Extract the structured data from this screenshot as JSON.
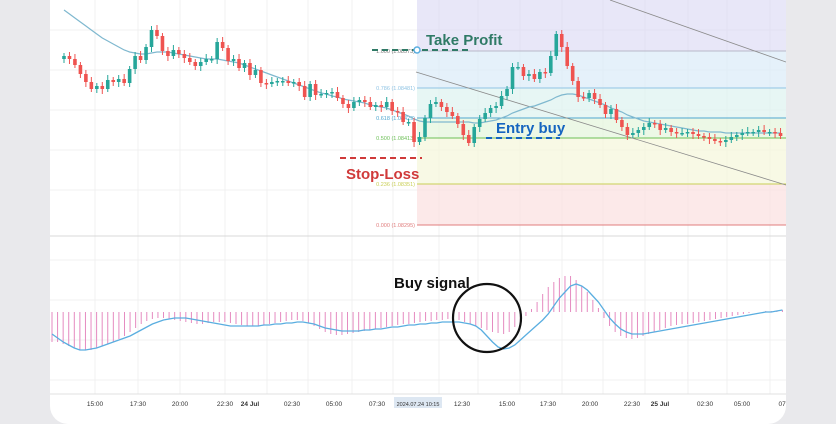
{
  "annotations": {
    "take_profit": "Take Profit",
    "entry_buy": "Entry buy",
    "stop_loss": "Stop-Loss",
    "buy_signal": "Buy signal"
  },
  "colors": {
    "bull": "#26a69a",
    "bear": "#ef5350",
    "ma": "#7fb8cf",
    "take_profit": "#2f7a66",
    "entry": "#1565c0",
    "stop_loss": "#d03a3a",
    "macd_hist": "#e58ac0",
    "macd_line": "#5aaee0"
  },
  "chart_data": [
    {
      "type": "candlestick",
      "fib_levels": [
        {
          "ratio": "1.000",
          "price": "1.08573",
          "label": "1.000 (1.08573)",
          "color": "#b9b9c9"
        },
        {
          "ratio": "0.786",
          "price": "1.08481",
          "label": "0.786 (1.08481)",
          "color": "#90c4e4"
        },
        {
          "ratio": "0.618",
          "price": "1.08429",
          "label": "0.618 (1.08429)",
          "color": "#4fa6cf"
        },
        {
          "ratio": "0.500",
          "price": "1.08413",
          "label": "0.500 (1.08413)",
          "color": "#6cbf56"
        },
        {
          "ratio": "0.236",
          "price": "1.08351",
          "label": "0.236 (1.08351)",
          "color": "#c9cf55"
        },
        {
          "ratio": "0.000",
          "price": "1.08295",
          "label": "0.000 (1.08295)",
          "color": "#e07d7d"
        }
      ],
      "x_ticks": [
        "15:00",
        "17:30",
        "20:00",
        "22:30",
        "24 Jul",
        "02:30",
        "05:00",
        "07:30",
        "2024.07.24 10:15",
        "12:30",
        "15:00",
        "17:30",
        "20:00",
        "22:30",
        "25 Jul",
        "02:30",
        "05:00",
        "07:"
      ],
      "highlighted_tick": "2024.07.24 10:15",
      "closes": [
        216,
        213,
        207,
        198,
        190,
        183,
        186,
        183,
        192,
        190,
        193,
        189,
        203,
        216,
        212,
        225,
        242,
        236,
        221,
        216,
        222,
        218,
        214,
        210,
        206,
        210,
        213,
        213,
        230,
        224,
        211,
        213,
        204,
        209,
        197,
        202,
        189,
        188,
        190,
        191,
        191,
        189,
        190,
        186,
        175,
        188,
        177,
        178,
        179,
        180,
        174,
        168,
        164,
        170,
        172,
        170,
        165,
        167,
        165,
        170,
        161,
        160,
        150,
        150,
        130,
        135,
        154,
        168,
        170,
        165,
        160,
        156,
        148,
        137,
        129,
        145,
        153,
        159,
        164,
        166,
        176,
        183,
        205,
        205,
        196,
        198,
        193,
        200,
        199,
        216,
        238,
        225,
        206,
        191,
        175,
        174,
        179,
        173,
        167,
        158,
        163,
        152,
        145,
        137,
        139,
        142,
        145,
        149,
        148,
        142,
        144,
        140,
        139,
        139,
        140,
        138,
        136,
        135,
        133,
        131,
        130,
        132,
        135,
        137,
        139,
        140,
        140,
        142,
        140,
        140,
        139,
        136
      ],
      "ma": [
        262,
        258,
        254,
        250,
        246,
        242,
        238,
        234,
        231,
        228,
        225,
        222,
        220,
        219,
        218,
        218,
        219,
        220,
        220,
        220,
        219,
        218,
        217,
        216,
        215,
        214,
        213,
        213,
        213,
        212,
        211,
        210,
        209,
        207,
        205,
        203,
        201,
        199,
        197,
        195,
        193,
        191,
        189,
        187,
        185,
        183,
        181,
        179,
        178,
        176,
        175,
        173,
        172,
        171,
        170,
        169,
        167,
        166,
        165,
        164,
        162,
        160,
        158,
        156,
        153,
        151,
        150,
        150,
        150,
        150,
        150,
        150,
        150,
        150,
        150,
        149,
        149,
        150,
        151,
        152,
        154,
        156,
        159,
        161,
        163,
        165,
        166,
        168,
        170,
        172,
        175,
        177,
        178,
        178,
        177,
        175,
        173,
        171,
        169,
        167,
        164,
        162,
        160,
        157,
        155,
        153,
        151,
        150,
        149,
        148,
        147,
        146,
        145,
        144,
        143,
        142,
        141,
        141,
        140,
        140,
        140,
        139,
        139,
        139,
        139,
        139,
        139,
        139,
        139,
        139,
        139,
        139
      ]
    },
    {
      "type": "bar",
      "name": "MACD",
      "signal_label": "Buy signal",
      "hist": [
        -30,
        -30,
        -32,
        -34,
        -36,
        -38,
        -38,
        -38,
        -36,
        -34,
        -32,
        -30,
        -27,
        -24,
        -20,
        -16,
        -12,
        -9,
        -7,
        -6,
        -6,
        -7,
        -8,
        -9,
        -10,
        -11,
        -12,
        -12,
        -11,
        -10,
        -10,
        -10,
        -11,
        -12,
        -13,
        -14,
        -14,
        -14,
        -13,
        -12,
        -11,
        -10,
        -9,
        -8,
        -8,
        -9,
        -11,
        -14,
        -17,
        -20,
        -22,
        -23,
        -23,
        -22,
        -21,
        -20,
        -19,
        -18,
        -17,
        -16,
        -15,
        -14,
        -13,
        -12,
        -12,
        -11,
        -10,
        -9,
        -9,
        -8,
        -8,
        -7,
        -7,
        -8,
        -10,
        -12,
        -14,
        -16,
        -18,
        -20,
        -21,
        -22,
        -20,
        -15,
        -10,
        -4,
        3,
        10,
        18,
        25,
        30,
        34,
        36,
        36,
        32,
        26,
        20,
        12,
        4,
        -6,
        -14,
        -20,
        -24,
        -26,
        -27,
        -26,
        -24,
        -22,
        -20,
        -18,
        -16,
        -14,
        -13,
        -12,
        -12,
        -11,
        -10,
        -9,
        -8,
        -7,
        -6,
        -5,
        -4,
        -3,
        -2,
        -1,
        0,
        0,
        1,
        1,
        1,
        2
      ],
      "signal": [
        -22,
        -26,
        -30,
        -33,
        -36,
        -38,
        -38,
        -37,
        -36,
        -34,
        -32,
        -30,
        -28,
        -26,
        -24,
        -21,
        -18,
        -15,
        -12,
        -10,
        -8,
        -7,
        -6,
        -6,
        -6,
        -7,
        -8,
        -9,
        -10,
        -11,
        -12,
        -13,
        -14,
        -14,
        -14,
        -14,
        -14,
        -14,
        -13,
        -13,
        -12,
        -12,
        -11,
        -11,
        -10,
        -10,
        -11,
        -12,
        -14,
        -16,
        -17,
        -18,
        -19,
        -19,
        -19,
        -19,
        -18,
        -18,
        -17,
        -17,
        -16,
        -15,
        -15,
        -14,
        -13,
        -13,
        -12,
        -12,
        -11,
        -11,
        -10,
        -10,
        -10,
        -10,
        -11,
        -12,
        -14,
        -18,
        -24,
        -30,
        -35,
        -37,
        -36,
        -33,
        -28,
        -23,
        -18,
        -13,
        -8,
        -2,
        6,
        14,
        20,
        26,
        28,
        26,
        22,
        16,
        10,
        2,
        -6,
        -12,
        -17,
        -20,
        -22,
        -22,
        -22,
        -21,
        -20,
        -19,
        -18,
        -17,
        -16,
        -15,
        -14,
        -13,
        -12,
        -11,
        -10,
        -9,
        -8,
        -7,
        -6,
        -5,
        -4,
        -3,
        -2,
        -1,
        0,
        0,
        1,
        2
      ]
    }
  ]
}
